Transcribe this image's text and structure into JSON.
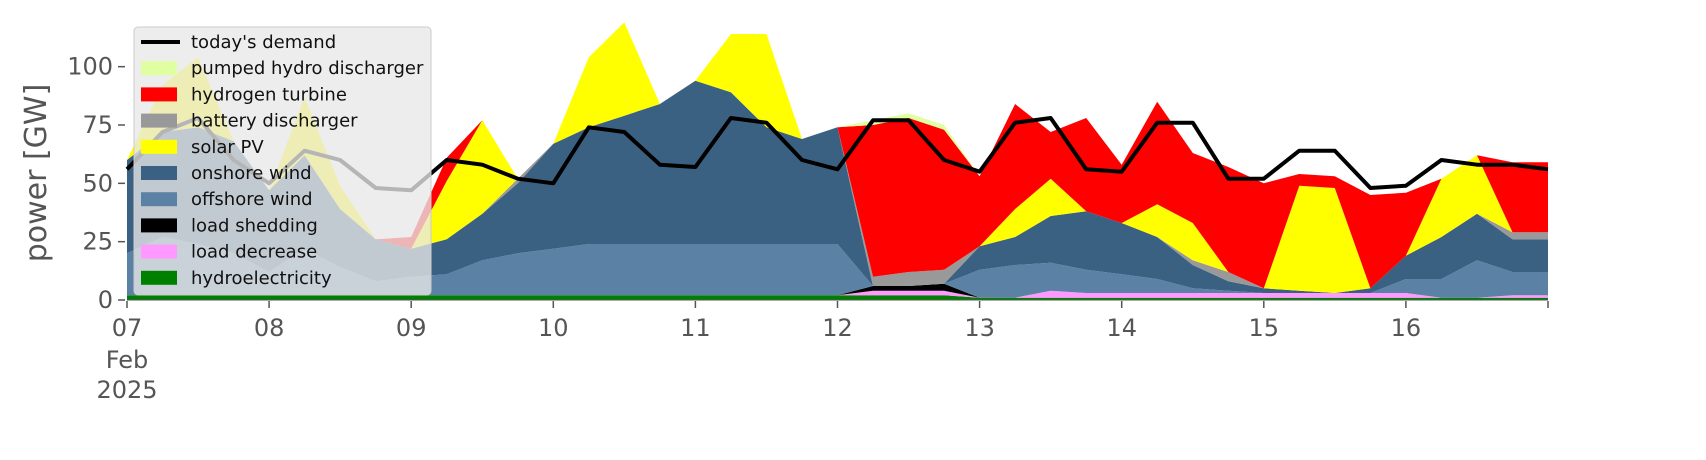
{
  "chart_data": {
    "type": "area",
    "title": "",
    "xlabel": "",
    "ylabel": "power [GW]",
    "ylim": [
      0,
      120
    ],
    "xlim": [
      "2025-02-07 00:00",
      "2025-02-17 00:00"
    ],
    "y_ticks": [
      0,
      25,
      50,
      75,
      100
    ],
    "x_tick_labels": [
      "07",
      "08",
      "09",
      "10",
      "11",
      "12",
      "13",
      "14",
      "15",
      "16"
    ],
    "x_tick_sublabels": [
      "Feb",
      "2025"
    ],
    "grid": false,
    "legend_position": "upper-left",
    "x": [
      "2025-02-07",
      "2025-02-07 06:00",
      "2025-02-07 12:00",
      "2025-02-07 18:00",
      "2025-02-08",
      "2025-02-08 06:00",
      "2025-02-08 12:00",
      "2025-02-08 18:00",
      "2025-02-09",
      "2025-02-09 06:00",
      "2025-02-09 12:00",
      "2025-02-09 18:00",
      "2025-02-10",
      "2025-02-10 06:00",
      "2025-02-10 12:00",
      "2025-02-10 18:00",
      "2025-02-11",
      "2025-02-11 06:00",
      "2025-02-11 12:00",
      "2025-02-11 18:00",
      "2025-02-12",
      "2025-02-12 06:00",
      "2025-02-12 12:00",
      "2025-02-12 18:00",
      "2025-02-13",
      "2025-02-13 06:00",
      "2025-02-13 12:00",
      "2025-02-13 18:00",
      "2025-02-14",
      "2025-02-14 06:00",
      "2025-02-14 12:00",
      "2025-02-14 18:00",
      "2025-02-15",
      "2025-02-15 06:00",
      "2025-02-15 12:00",
      "2025-02-15 18:00",
      "2025-02-16",
      "2025-02-16 06:00",
      "2025-02-16 12:00",
      "2025-02-16 18:00",
      "2025-02-17"
    ],
    "stack_series": [
      {
        "name": "hydroelectricity",
        "color": "#008000",
        "values": [
          2,
          2,
          2,
          2,
          2,
          2,
          2,
          2,
          2,
          2,
          2,
          2,
          2,
          2,
          2,
          2,
          2,
          2,
          2,
          2,
          2,
          2,
          2,
          2,
          1,
          1,
          1,
          1,
          1,
          1,
          1,
          1,
          1,
          1,
          1,
          1,
          1,
          1,
          1,
          1,
          1
        ]
      },
      {
        "name": "load decrease",
        "color": "#ff99ff",
        "values": [
          0,
          0,
          0,
          0,
          0,
          0,
          0,
          0,
          0,
          0,
          0,
          0,
          0,
          0,
          0,
          0,
          0,
          0,
          0,
          0,
          0,
          2,
          2,
          2,
          0,
          0,
          3,
          2,
          2,
          2,
          2,
          2,
          2,
          2,
          2,
          2,
          2,
          0,
          0,
          1,
          1
        ]
      },
      {
        "name": "load shedding",
        "color": "#000000",
        "values": [
          0,
          0,
          0,
          0,
          0,
          0,
          0,
          0,
          0,
          0,
          0,
          0,
          0,
          0,
          0,
          0,
          0,
          0,
          0,
          0,
          0,
          2,
          2,
          3,
          0,
          0,
          0,
          0,
          0,
          0,
          0,
          0,
          0,
          0,
          0,
          0,
          0,
          0,
          0,
          0,
          0
        ]
      },
      {
        "name": "offshore wind",
        "color": "#5b81a5",
        "values": [
          18,
          25,
          22,
          18,
          10,
          20,
          12,
          6,
          8,
          9,
          15,
          18,
          20,
          22,
          22,
          22,
          22,
          22,
          22,
          22,
          22,
          0,
          0,
          0,
          12,
          14,
          12,
          10,
          8,
          6,
          2,
          1,
          0,
          0,
          0,
          0,
          6,
          8,
          16,
          10,
          10
        ]
      },
      {
        "name": "onshore wind",
        "color": "#3b6182",
        "values": [
          40,
          45,
          50,
          48,
          35,
          40,
          25,
          18,
          12,
          15,
          20,
          30,
          45,
          50,
          55,
          60,
          70,
          65,
          50,
          45,
          50,
          0,
          0,
          0,
          10,
          12,
          20,
          25,
          22,
          18,
          10,
          4,
          2,
          1,
          0,
          2,
          10,
          18,
          20,
          14,
          14
        ]
      },
      {
        "name": "battery discharger",
        "color": "#999999",
        "values": [
          0,
          0,
          0,
          0,
          0,
          0,
          0,
          0,
          0,
          0,
          0,
          2,
          0,
          0,
          0,
          0,
          0,
          0,
          0,
          0,
          0,
          4,
          6,
          6,
          0,
          0,
          0,
          0,
          0,
          0,
          2,
          4,
          0,
          0,
          0,
          0,
          0,
          0,
          0,
          3,
          3
        ]
      },
      {
        "name": "solar PV",
        "color": "#ffff00",
        "values": [
          0,
          20,
          30,
          0,
          0,
          25,
          10,
          0,
          0,
          25,
          40,
          0,
          0,
          30,
          40,
          0,
          0,
          25,
          40,
          0,
          0,
          0,
          0,
          0,
          0,
          12,
          16,
          0,
          0,
          14,
          16,
          0,
          0,
          45,
          45,
          0,
          0,
          25,
          25,
          0,
          0
        ]
      },
      {
        "name": "hydrogen turbine",
        "color": "#ff0000",
        "values": [
          0,
          0,
          0,
          0,
          0,
          0,
          0,
          0,
          5,
          10,
          0,
          0,
          0,
          0,
          0,
          0,
          0,
          0,
          0,
          0,
          0,
          65,
          66,
          60,
          30,
          45,
          20,
          40,
          25,
          44,
          30,
          45,
          45,
          5,
          5,
          40,
          27,
          0,
          0,
          30,
          30
        ]
      },
      {
        "name": "pumped hydro discharger",
        "color": "#e0ffa0",
        "values": [
          0,
          0,
          0,
          0,
          0,
          0,
          0,
          0,
          0,
          0,
          0,
          0,
          0,
          0,
          0,
          0,
          0,
          0,
          0,
          0,
          0,
          2,
          2,
          2,
          0,
          0,
          0,
          0,
          0,
          0,
          0,
          0,
          0,
          0,
          0,
          0,
          0,
          0,
          0,
          0,
          0
        ]
      }
    ],
    "line_series": [
      {
        "name": "today's demand",
        "color": "#000000",
        "values": [
          56,
          72,
          78,
          60,
          50,
          64,
          60,
          48,
          47,
          60,
          58,
          52,
          50,
          74,
          72,
          58,
          57,
          78,
          76,
          60,
          56,
          77,
          77,
          60,
          55,
          76,
          78,
          56,
          55,
          76,
          76,
          52,
          52,
          64,
          64,
          48,
          49,
          60,
          58,
          58,
          56
        ]
      }
    ],
    "legend": [
      "today's demand",
      "pumped hydro discharger",
      "hydrogen turbine",
      "battery discharger",
      "solar PV",
      "onshore wind",
      "offshore wind",
      "load shedding",
      "load decrease",
      "hydroelectricity"
    ]
  }
}
